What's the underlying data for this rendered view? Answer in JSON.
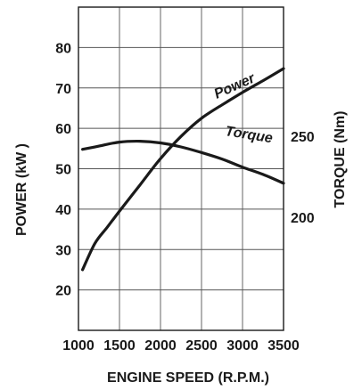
{
  "chart_data": {
    "type": "line",
    "title": "",
    "xlabel": "ENGINE SPEED (R.P.M.)",
    "ylabel_left": "POWER (kW )",
    "ylabel_right": "TORQUE (Nm)",
    "xlim": [
      1000,
      3500
    ],
    "ylim_left": [
      10,
      90
    ],
    "ylim_right": [
      130,
      330
    ],
    "x_ticks": [
      "1000",
      "1500",
      "2000",
      "2500",
      "3000",
      "3500"
    ],
    "y_ticks_left": [
      "20",
      "30",
      "40",
      "50",
      "60",
      "70",
      "80"
    ],
    "y_ticks_right": [
      "200",
      "250"
    ],
    "grid": true,
    "series": [
      {
        "name": "Power",
        "axis": "left",
        "x": [
          1050,
          1200,
          1350,
          1500,
          1750,
          2000,
          2250,
          2500,
          2750,
          3000,
          3250,
          3500
        ],
        "values": [
          25,
          31.5,
          35.5,
          39.5,
          46,
          52.5,
          58,
          62.5,
          65.8,
          68.9,
          71.8,
          74.8
        ]
      },
      {
        "name": "Torque",
        "axis": "right",
        "x": [
          1050,
          1250,
          1500,
          1750,
          2000,
          2250,
          2500,
          2750,
          3000,
          3250,
          3500
        ],
        "values": [
          242,
          244,
          246.5,
          247,
          246,
          243.5,
          240,
          236,
          231,
          226.5,
          221
        ]
      }
    ],
    "colors": {
      "line": "#1a1a1a",
      "grid": "#555555"
    }
  }
}
